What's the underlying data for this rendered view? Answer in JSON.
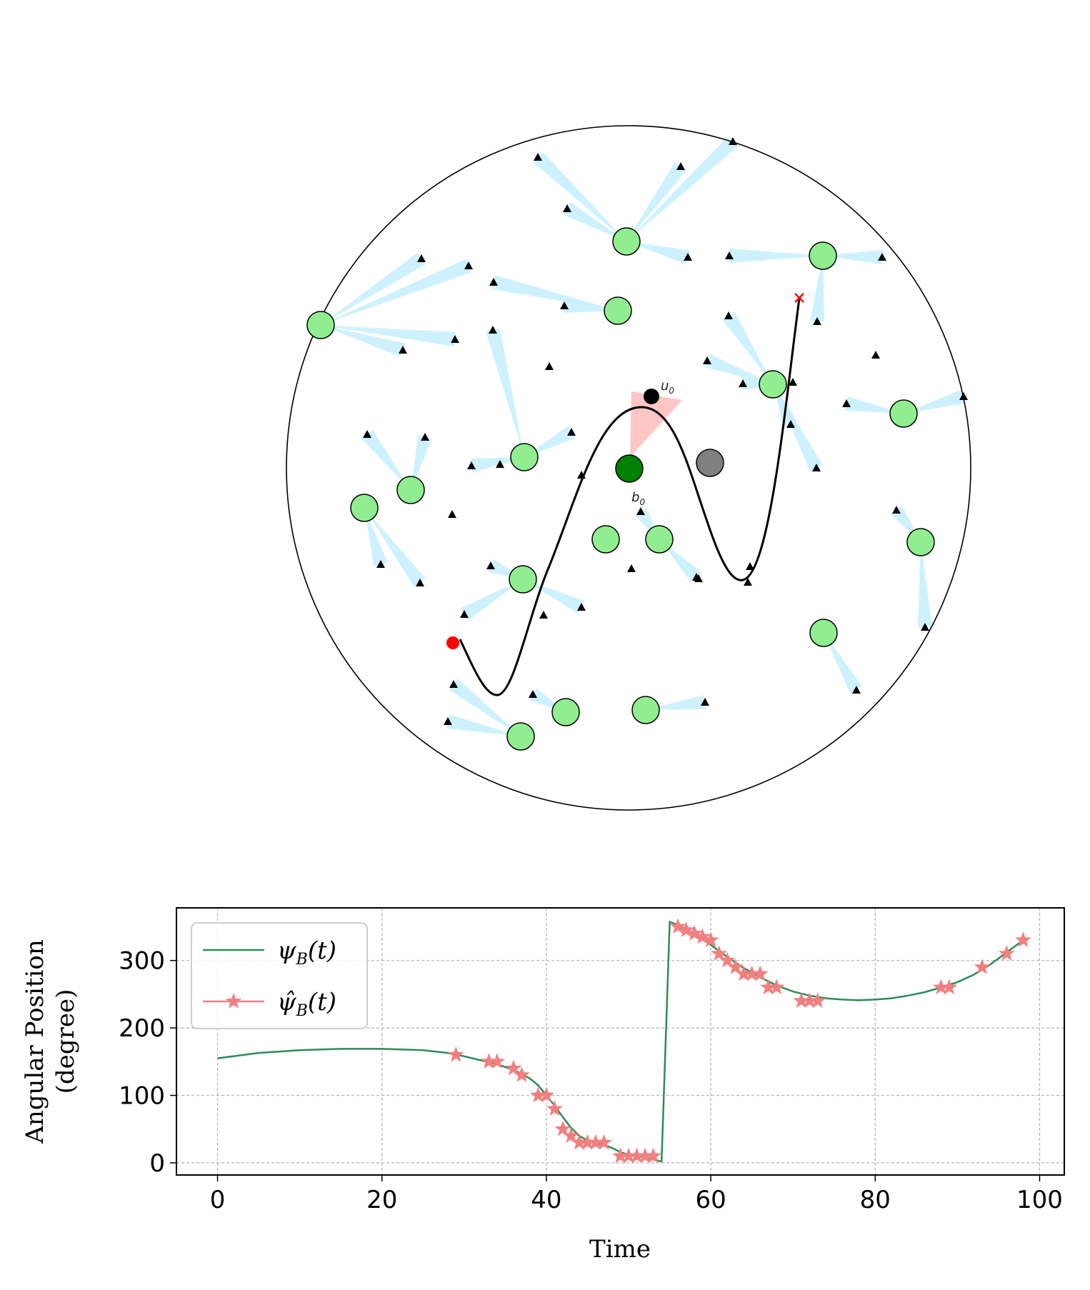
{
  "chart_data": [
    {
      "type": "scatter",
      "panel": "network-map",
      "markers": {
        "start_color": "#ff0000",
        "end_color": "#ff0000",
        "node_color": "#90ee90",
        "base_station_color": "#008000",
        "user_color": "#000000",
        "obstacle_color": "#808080",
        "sensor_color": "#000000",
        "beam_color": "#c6efff",
        "active_beam_color": "#ffc0c0"
      },
      "labels": {
        "user": "u",
        "user_sub": "0",
        "base": "b",
        "base_sub": "0"
      }
    },
    {
      "type": "line",
      "panel": "angular-position",
      "xlabel": "Time",
      "ylabel_line1": "Angular Position",
      "ylabel_line2": "(degree)",
      "xlim": [
        -5,
        103
      ],
      "ylim": [
        -18,
        378
      ],
      "xticks": [
        0,
        20,
        40,
        60,
        80,
        100
      ],
      "yticks": [
        0,
        100,
        200,
        300
      ],
      "grid": true,
      "legend_position": "upper-left",
      "series": [
        {
          "name": "ψ",
          "name_sub": "B",
          "name_suffix": "(t)",
          "color": "#2e8b57",
          "x": [
            0,
            5,
            10,
            15,
            20,
            25,
            28,
            30,
            32,
            34,
            36,
            38,
            39,
            40,
            41,
            42,
            43,
            44,
            45,
            46,
            47,
            48,
            49,
            50,
            51,
            52,
            53,
            54,
            54.01,
            55,
            56,
            57,
            58,
            59,
            60,
            62,
            64,
            66,
            68,
            70,
            72,
            74,
            76,
            78,
            80,
            82,
            84,
            86,
            88,
            90,
            92,
            94,
            96,
            98
          ],
          "y": [
            155,
            163,
            167,
            169,
            169,
            167,
            163,
            158,
            152,
            146,
            138,
            125,
            115,
            100,
            85,
            68,
            52,
            40,
            33,
            29,
            27,
            22,
            16,
            12,
            10,
            8,
            5,
            2,
            2,
            357,
            353,
            346,
            339,
            331,
            323,
            305,
            289,
            275,
            263,
            254,
            248,
            244,
            242,
            241,
            242,
            244,
            248,
            253,
            260,
            268,
            279,
            294,
            312,
            330
          ]
        },
        {
          "name": "ψ̂",
          "name_sub": "B",
          "name_suffix": "(t)",
          "color": "#f08080",
          "x": [
            29,
            33,
            34,
            36,
            37,
            39,
            40,
            41,
            42,
            43,
            44,
            45,
            46,
            47,
            49,
            50,
            51,
            52,
            53,
            56,
            57,
            58,
            59,
            60,
            61,
            62,
            63,
            64,
            65,
            66,
            67,
            68,
            71,
            72,
            73,
            88,
            89,
            93,
            96,
            98
          ],
          "y": [
            160,
            150,
            150,
            140,
            130,
            100,
            100,
            80,
            50,
            40,
            30,
            30,
            30,
            30,
            10,
            10,
            10,
            10,
            10,
            350,
            345,
            340,
            335,
            330,
            310,
            300,
            290,
            280,
            280,
            280,
            260,
            260,
            240,
            240,
            240,
            260,
            260,
            290,
            310,
            330
          ]
        }
      ]
    }
  ]
}
